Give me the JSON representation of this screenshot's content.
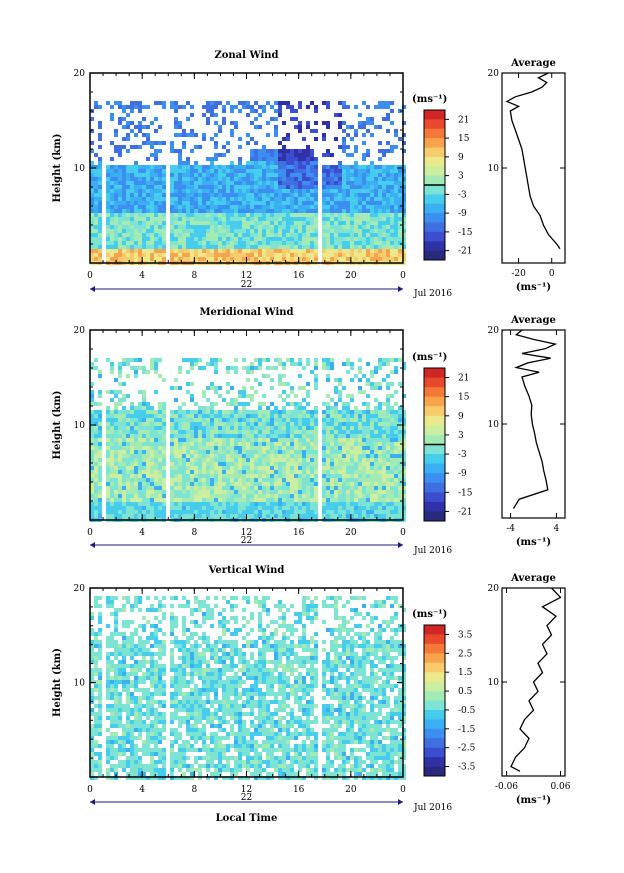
{
  "chart_data": [
    {
      "type": "heatmap",
      "title": "Zonal Wind",
      "ylabel": "Height (km)",
      "y_ticks": [
        "20",
        "10"
      ],
      "x_ticks": [
        "0",
        "4",
        "8",
        "12",
        "16",
        "20",
        "0"
      ],
      "date_label": "22",
      "month_label": "Jul 2016",
      "xlabel": "",
      "colorbar": {
        "unit": "(ms⁻¹)",
        "ticks": [
          "21",
          "15",
          "9",
          "3",
          "-3",
          "-9",
          "-15",
          "-21"
        ],
        "range": [
          -24,
          24
        ]
      },
      "average": {
        "title": "Average",
        "x_ticks": [
          "-20",
          "0"
        ],
        "xlim": [
          -30,
          8
        ],
        "unit": "(ms⁻¹)",
        "y_ticks": [
          "20",
          "10"
        ],
        "profile": [
          [
            1.5,
            5
          ],
          [
            2,
            3
          ],
          [
            3,
            -2
          ],
          [
            4,
            -5
          ],
          [
            5,
            -7
          ],
          [
            6,
            -11
          ],
          [
            7,
            -13
          ],
          [
            8,
            -14
          ],
          [
            9,
            -15
          ],
          [
            10,
            -16
          ],
          [
            11,
            -17
          ],
          [
            12,
            -18
          ],
          [
            13,
            -20
          ],
          [
            14,
            -22
          ],
          [
            15,
            -24
          ],
          [
            16,
            -25
          ],
          [
            16.5,
            -20
          ],
          [
            17,
            -27
          ],
          [
            17.5,
            -22
          ],
          [
            18,
            -12
          ],
          [
            18.5,
            -6
          ],
          [
            19,
            -3
          ],
          [
            19.5,
            -8
          ],
          [
            20,
            -2
          ]
        ]
      }
    },
    {
      "type": "heatmap",
      "title": "Meridional Wind",
      "ylabel": "Height (km)",
      "y_ticks": [
        "20",
        "10"
      ],
      "x_ticks": [
        "0",
        "4",
        "8",
        "12",
        "16",
        "20",
        "0"
      ],
      "date_label": "22",
      "month_label": "Jul 2016",
      "xlabel": "",
      "colorbar": {
        "unit": "(ms⁻¹)",
        "ticks": [
          "21",
          "15",
          "9",
          "3",
          "-3",
          "-9",
          "-15",
          "-21"
        ],
        "range": [
          -24,
          24
        ]
      },
      "average": {
        "title": "Average",
        "x_ticks": [
          "-4",
          "4"
        ],
        "xlim": [
          -5.5,
          5.5
        ],
        "unit": "(ms⁻¹)",
        "y_ticks": [
          "20",
          "10"
        ],
        "profile": [
          [
            1,
            -3.5
          ],
          [
            2,
            -2.5
          ],
          [
            3,
            2.5
          ],
          [
            4,
            2.2
          ],
          [
            5,
            1.8
          ],
          [
            6,
            1.5
          ],
          [
            7,
            1
          ],
          [
            8,
            0.5
          ],
          [
            9,
            0.2
          ],
          [
            10,
            -0.2
          ],
          [
            11,
            -0.4
          ],
          [
            12,
            -0.3
          ],
          [
            13,
            -0.8
          ],
          [
            14,
            -1.5
          ],
          [
            15,
            -2
          ],
          [
            15.5,
            1
          ],
          [
            16,
            -3
          ],
          [
            16.5,
            -1
          ],
          [
            17,
            3
          ],
          [
            17.5,
            -2
          ],
          [
            18,
            2
          ],
          [
            18.5,
            3.8
          ],
          [
            19,
            0
          ],
          [
            19.5,
            -3
          ],
          [
            20,
            -2
          ]
        ]
      }
    },
    {
      "type": "heatmap",
      "title": "Vertical Wind",
      "ylabel": "Height (km)",
      "y_ticks": [
        "20",
        "10"
      ],
      "x_ticks": [
        "0",
        "4",
        "8",
        "12",
        "16",
        "20",
        "0"
      ],
      "date_label": "22",
      "month_label": "Jul 2016",
      "xlabel": "Local Time",
      "colorbar": {
        "unit": "(ms⁻¹)",
        "ticks": [
          "3.5",
          "2.5",
          "1.5",
          "0.5",
          "-0.5",
          "-1.5",
          "-2.5",
          "-3.5"
        ],
        "range": [
          -4,
          4
        ]
      },
      "average": {
        "title": "Average",
        "x_ticks": [
          "-0.06",
          "0.06"
        ],
        "xlim": [
          -0.07,
          0.07
        ],
        "unit": "(ms⁻¹)",
        "y_ticks": [
          "20",
          "10"
        ],
        "profile": [
          [
            0.5,
            -0.03
          ],
          [
            1,
            -0.05
          ],
          [
            2,
            -0.04
          ],
          [
            3,
            -0.02
          ],
          [
            4,
            -0.01
          ],
          [
            5,
            -0.03
          ],
          [
            6,
            -0.02
          ],
          [
            7,
            0.0
          ],
          [
            8,
            -0.01
          ],
          [
            9,
            0.01
          ],
          [
            10,
            0.0
          ],
          [
            11,
            0.02
          ],
          [
            12,
            0.01
          ],
          [
            13,
            0.03
          ],
          [
            14,
            0.02
          ],
          [
            15,
            0.04
          ],
          [
            16,
            0.03
          ],
          [
            17,
            0.05
          ],
          [
            18,
            0.02
          ],
          [
            19,
            0.06
          ],
          [
            20,
            0.04
          ]
        ]
      }
    }
  ]
}
